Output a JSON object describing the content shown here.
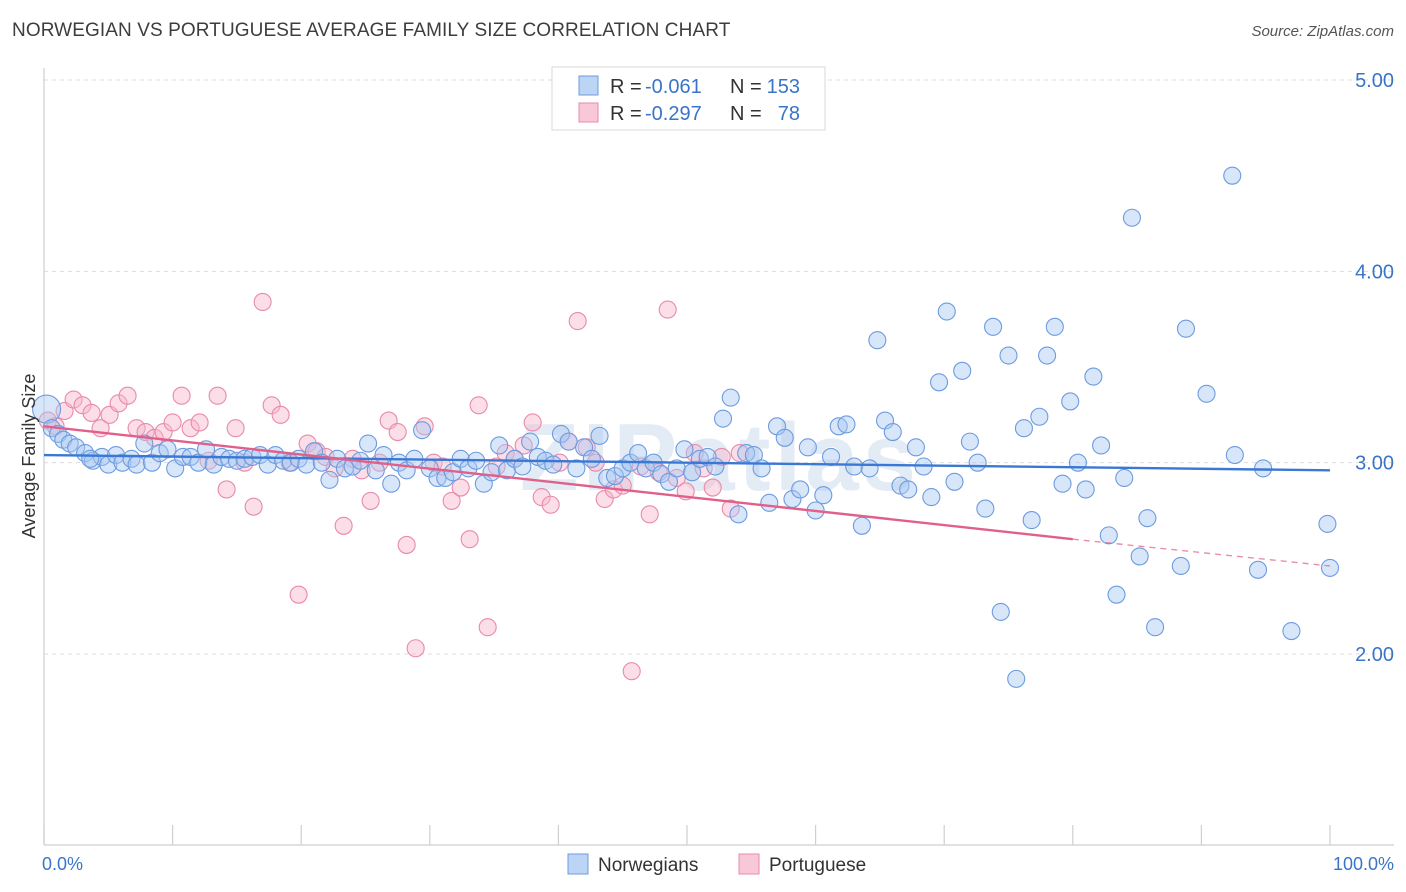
{
  "header": {
    "title": "NORWEGIAN VS PORTUGUESE AVERAGE FAMILY SIZE CORRELATION CHART",
    "source": "Source: ZipAtlas.com"
  },
  "watermark": "ZIPatlas",
  "stats_legend": [
    {
      "r_label": "R =",
      "r_value": "-0.061",
      "n_label": "N =",
      "n_value": "153",
      "color": "#a9c8f2"
    },
    {
      "r_label": "R =",
      "r_value": "-0.297",
      "n_label": "N =",
      "n_value": "78",
      "color": "#f6b6cb"
    }
  ],
  "bottom_legend": [
    {
      "label": "Norwegians",
      "color": "#a9c8f2"
    },
    {
      "label": "Portuguese",
      "color": "#f6b6cb"
    }
  ],
  "chart_data": {
    "type": "scatter",
    "ylabel": "Average Family Size",
    "xlabel": "",
    "x_tick_labels": [
      "0.0%",
      "100.0%"
    ],
    "y_tick_labels": [
      "2.00",
      "3.00",
      "4.00",
      "5.00"
    ],
    "xlim": [
      0,
      100
    ],
    "ylim": [
      1.0,
      5.0
    ],
    "grid": "horizontal dashed",
    "legend_position": "top-center",
    "colors": {
      "norwegians": "#3b78d4",
      "portuguese": "#e0608a"
    },
    "series": [
      {
        "name": "Norwegians",
        "trend": {
          "x": [
            0,
            100
          ],
          "y": [
            3.04,
            2.96
          ]
        },
        "points": [
          [
            0.2,
            3.28
          ],
          [
            0.6,
            3.18
          ],
          [
            1.1,
            3.15
          ],
          [
            1.5,
            3.12
          ],
          [
            2.0,
            3.1
          ],
          [
            2.5,
            3.08
          ],
          [
            3.2,
            3.05
          ],
          [
            3.8,
            3.01
          ],
          [
            4.5,
            3.03
          ],
          [
            5.0,
            2.99
          ],
          [
            5.6,
            3.04
          ],
          [
            6.1,
            3.0
          ],
          [
            6.8,
            3.02
          ],
          [
            7.2,
            2.99
          ],
          [
            7.8,
            3.1
          ],
          [
            8.4,
            3.0
          ],
          [
            9.0,
            3.05
          ],
          [
            9.6,
            3.07
          ],
          [
            10.2,
            2.97
          ],
          [
            10.8,
            3.03
          ],
          [
            11.4,
            3.03
          ],
          [
            12.0,
            3.0
          ],
          [
            12.6,
            3.07
          ],
          [
            13.2,
            2.99
          ],
          [
            13.8,
            3.03
          ],
          [
            14.4,
            3.02
          ],
          [
            15.0,
            3.01
          ],
          [
            15.6,
            3.02
          ],
          [
            16.2,
            3.03
          ],
          [
            16.8,
            3.04
          ],
          [
            17.4,
            2.99
          ],
          [
            18.0,
            3.04
          ],
          [
            18.6,
            3.01
          ],
          [
            19.2,
            3.0
          ],
          [
            19.8,
            3.02
          ],
          [
            20.4,
            2.99
          ],
          [
            21.0,
            3.06
          ],
          [
            21.6,
            3.0
          ],
          [
            22.2,
            2.91
          ],
          [
            22.8,
            3.02
          ],
          [
            23.4,
            2.97
          ],
          [
            24.0,
            2.98
          ],
          [
            24.6,
            3.01
          ],
          [
            25.2,
            3.1
          ],
          [
            25.8,
            2.96
          ],
          [
            26.4,
            3.04
          ],
          [
            27.0,
            2.89
          ],
          [
            27.6,
            3.0
          ],
          [
            28.2,
            2.96
          ],
          [
            28.8,
            3.02
          ],
          [
            29.4,
            3.17
          ],
          [
            30.0,
            2.97
          ],
          [
            30.6,
            2.92
          ],
          [
            31.2,
            2.92
          ],
          [
            31.8,
            2.95
          ],
          [
            32.4,
            3.02
          ],
          [
            33.0,
            2.97
          ],
          [
            33.6,
            3.01
          ],
          [
            34.2,
            2.89
          ],
          [
            34.8,
            2.95
          ],
          [
            35.4,
            3.09
          ],
          [
            36.0,
            2.96
          ],
          [
            36.6,
            3.02
          ],
          [
            37.2,
            2.98
          ],
          [
            37.8,
            3.11
          ],
          [
            38.4,
            3.03
          ],
          [
            39.0,
            3.01
          ],
          [
            39.6,
            2.99
          ],
          [
            40.2,
            3.15
          ],
          [
            40.8,
            3.11
          ],
          [
            41.4,
            2.97
          ],
          [
            42.0,
            3.08
          ],
          [
            42.6,
            3.02
          ],
          [
            43.2,
            3.14
          ],
          [
            43.8,
            2.92
          ],
          [
            44.4,
            2.93
          ],
          [
            45.0,
            2.97
          ],
          [
            45.6,
            3.0
          ],
          [
            46.2,
            3.05
          ],
          [
            46.8,
            2.97
          ],
          [
            47.4,
            3.0
          ],
          [
            48.0,
            2.94
          ],
          [
            48.6,
            2.9
          ],
          [
            49.2,
            2.97
          ],
          [
            49.8,
            3.07
          ],
          [
            50.4,
            2.95
          ],
          [
            51.0,
            3.02
          ],
          [
            51.6,
            3.03
          ],
          [
            52.2,
            2.98
          ],
          [
            52.8,
            3.23
          ],
          [
            53.4,
            3.34
          ],
          [
            54.0,
            2.73
          ],
          [
            54.6,
            3.05
          ],
          [
            55.2,
            3.04
          ],
          [
            55.8,
            2.97
          ],
          [
            56.4,
            2.79
          ],
          [
            57.0,
            3.19
          ],
          [
            57.6,
            3.13
          ],
          [
            58.2,
            2.81
          ],
          [
            58.8,
            2.86
          ],
          [
            59.4,
            3.08
          ],
          [
            60.0,
            2.75
          ],
          [
            60.6,
            2.83
          ],
          [
            61.2,
            3.03
          ],
          [
            61.8,
            3.19
          ],
          [
            62.4,
            3.2
          ],
          [
            63.0,
            2.98
          ],
          [
            63.6,
            2.67
          ],
          [
            64.2,
            2.97
          ],
          [
            64.8,
            3.64
          ],
          [
            65.4,
            3.22
          ],
          [
            66.0,
            3.16
          ],
          [
            66.6,
            2.88
          ],
          [
            67.2,
            2.86
          ],
          [
            67.8,
            3.08
          ],
          [
            68.4,
            2.98
          ],
          [
            69.0,
            2.82
          ],
          [
            69.6,
            3.42
          ],
          [
            70.2,
            3.79
          ],
          [
            70.8,
            2.9
          ],
          [
            71.4,
            3.48
          ],
          [
            72.0,
            3.11
          ],
          [
            72.6,
            3.0
          ],
          [
            73.2,
            2.76
          ],
          [
            73.8,
            3.71
          ],
          [
            74.4,
            2.22
          ],
          [
            75.0,
            3.56
          ],
          [
            75.6,
            1.87
          ],
          [
            76.2,
            3.18
          ],
          [
            76.8,
            2.7
          ],
          [
            77.4,
            3.24
          ],
          [
            78.0,
            3.56
          ],
          [
            78.6,
            3.71
          ],
          [
            79.2,
            2.89
          ],
          [
            79.8,
            3.32
          ],
          [
            80.4,
            3.0
          ],
          [
            81.0,
            2.86
          ],
          [
            81.6,
            3.45
          ],
          [
            82.2,
            3.09
          ],
          [
            82.8,
            2.62
          ],
          [
            83.4,
            2.31
          ],
          [
            84.0,
            2.92
          ],
          [
            84.6,
            4.28
          ],
          [
            85.2,
            2.51
          ],
          [
            85.8,
            2.71
          ],
          [
            86.4,
            2.14
          ],
          [
            88.4,
            2.46
          ],
          [
            88.8,
            3.7
          ],
          [
            90.4,
            3.36
          ],
          [
            92.4,
            4.5
          ],
          [
            92.6,
            3.04
          ],
          [
            94.4,
            2.44
          ],
          [
            94.8,
            2.97
          ],
          [
            97.0,
            2.12
          ],
          [
            99.8,
            2.68
          ],
          [
            100.0,
            2.45
          ],
          [
            3.6,
            3.02
          ]
        ]
      },
      {
        "name": "Portuguese",
        "trend": {
          "x": [
            0,
            80
          ],
          "y": [
            3.19,
            2.6
          ]
        },
        "trend_dashed": {
          "x": [
            80,
            100
          ],
          "y": [
            2.6,
            2.46
          ]
        },
        "points": [
          [
            0.3,
            3.22
          ],
          [
            0.9,
            3.19
          ],
          [
            1.6,
            3.27
          ],
          [
            2.3,
            3.33
          ],
          [
            3.0,
            3.3
          ],
          [
            3.7,
            3.26
          ],
          [
            4.4,
            3.18
          ],
          [
            5.1,
            3.25
          ],
          [
            5.8,
            3.31
          ],
          [
            6.5,
            3.35
          ],
          [
            7.2,
            3.18
          ],
          [
            7.9,
            3.16
          ],
          [
            8.6,
            3.13
          ],
          [
            9.3,
            3.16
          ],
          [
            10.0,
            3.21
          ],
          [
            10.7,
            3.35
          ],
          [
            11.4,
            3.18
          ],
          [
            12.1,
            3.21
          ],
          [
            12.8,
            3.01
          ],
          [
            13.5,
            3.35
          ],
          [
            14.2,
            2.86
          ],
          [
            14.9,
            3.18
          ],
          [
            15.6,
            3.0
          ],
          [
            16.3,
            2.77
          ],
          [
            17.0,
            3.84
          ],
          [
            17.7,
            3.3
          ],
          [
            18.4,
            3.25
          ],
          [
            19.1,
            3.0
          ],
          [
            19.8,
            2.31
          ],
          [
            20.5,
            3.1
          ],
          [
            21.2,
            3.06
          ],
          [
            21.9,
            3.03
          ],
          [
            22.6,
            2.97
          ],
          [
            23.3,
            2.67
          ],
          [
            24.0,
            3.02
          ],
          [
            24.7,
            2.96
          ],
          [
            25.4,
            2.8
          ],
          [
            26.1,
            3.0
          ],
          [
            26.8,
            3.22
          ],
          [
            27.5,
            3.16
          ],
          [
            28.2,
            2.57
          ],
          [
            28.9,
            2.03
          ],
          [
            29.6,
            3.19
          ],
          [
            30.3,
            3.0
          ],
          [
            31.0,
            2.98
          ],
          [
            31.7,
            2.8
          ],
          [
            32.4,
            2.87
          ],
          [
            33.1,
            2.6
          ],
          [
            33.8,
            3.3
          ],
          [
            34.5,
            2.14
          ],
          [
            35.2,
            2.98
          ],
          [
            35.9,
            3.05
          ],
          [
            36.6,
            3.02
          ],
          [
            37.3,
            3.09
          ],
          [
            38.0,
            3.21
          ],
          [
            38.7,
            2.82
          ],
          [
            39.4,
            2.78
          ],
          [
            40.1,
            3.0
          ],
          [
            40.8,
            3.11
          ],
          [
            41.5,
            3.74
          ],
          [
            42.2,
            3.08
          ],
          [
            42.9,
            3.0
          ],
          [
            43.6,
            2.81
          ],
          [
            44.3,
            2.86
          ],
          [
            45.0,
            2.88
          ],
          [
            45.7,
            1.91
          ],
          [
            46.4,
            2.98
          ],
          [
            47.1,
            2.73
          ],
          [
            47.8,
            2.95
          ],
          [
            48.5,
            3.8
          ],
          [
            49.2,
            2.92
          ],
          [
            49.9,
            2.85
          ],
          [
            50.6,
            3.05
          ],
          [
            51.3,
            2.97
          ],
          [
            52.0,
            2.87
          ],
          [
            52.7,
            3.03
          ],
          [
            53.4,
            2.76
          ],
          [
            54.1,
            3.05
          ]
        ]
      }
    ]
  }
}
